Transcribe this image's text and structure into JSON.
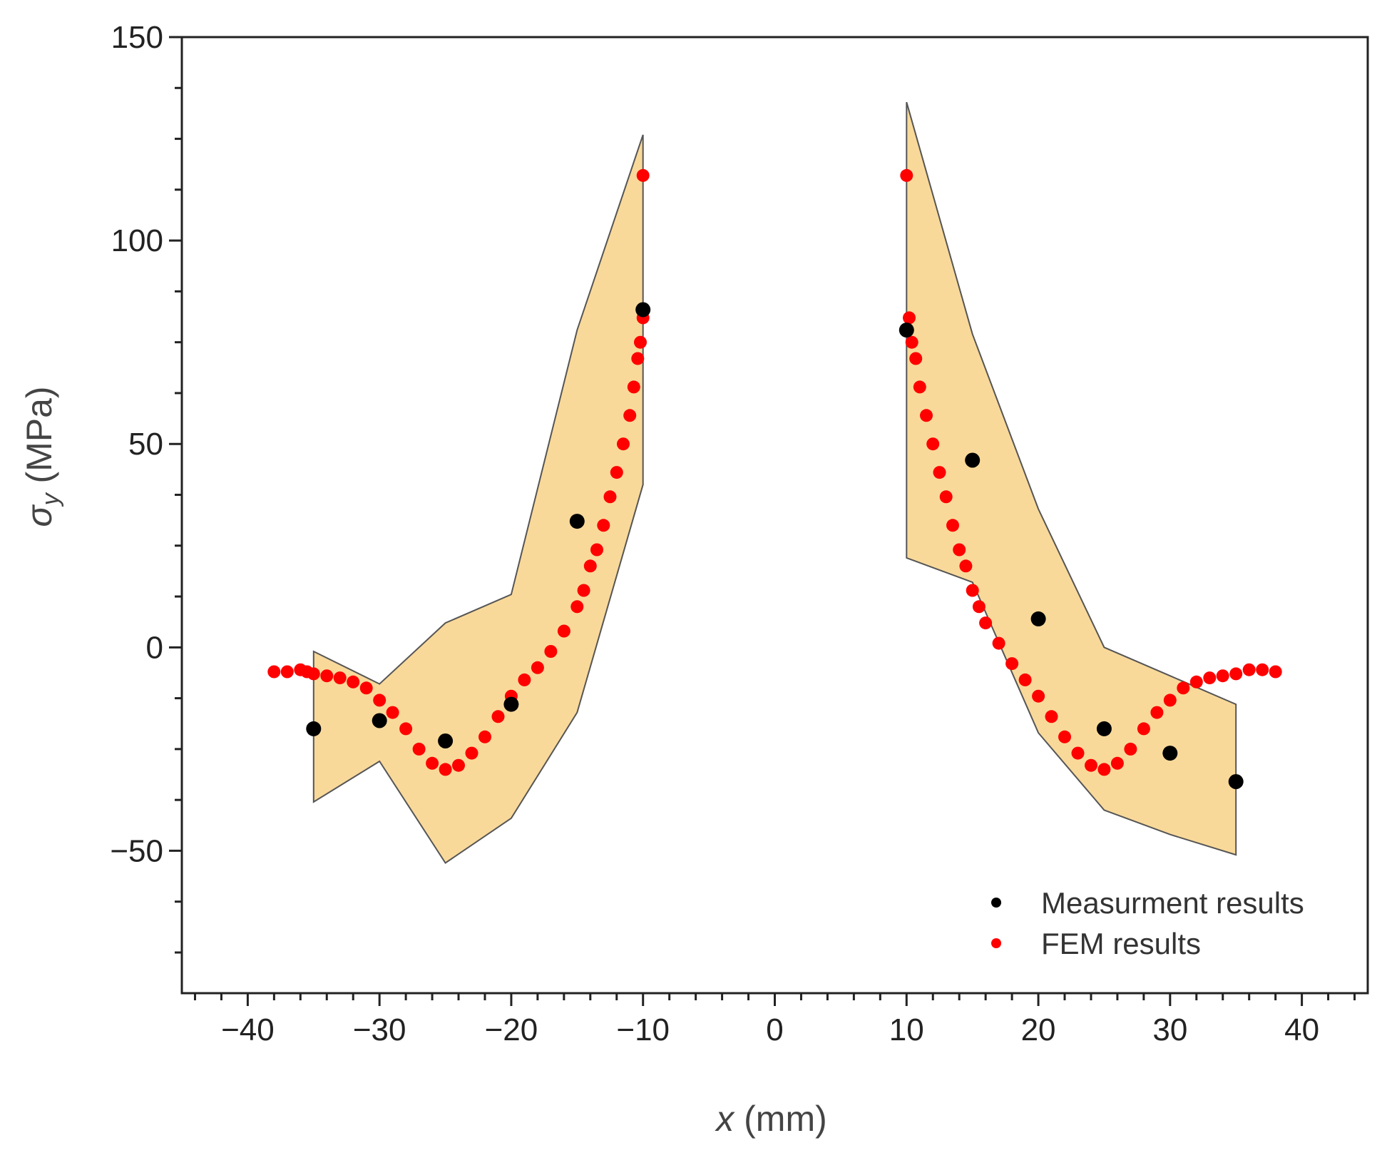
{
  "chart_data": {
    "type": "scatter",
    "title": "",
    "xlabel": "x (mm)",
    "ylabel": "σy (MPa)",
    "xlabel_parts": {
      "var": "x",
      "unit": " (mm)"
    },
    "ylabel_parts": {
      "sym": "σ",
      "sub": "y",
      "unit": " (MPa)"
    },
    "xlim": [
      -45,
      45
    ],
    "ylim": [
      -85,
      150
    ],
    "x_ticks": [
      -40,
      -30,
      -20,
      -10,
      0,
      10,
      20,
      30,
      40
    ],
    "x_tick_labels": [
      "−40",
      "−30",
      "−20",
      "−10",
      "0",
      "10",
      "20",
      "30",
      "40"
    ],
    "y_ticks": [
      150,
      100,
      50,
      0,
      -50
    ],
    "y_tick_labels": [
      "150",
      "100",
      "50",
      "0",
      "−50"
    ],
    "legend": {
      "position": "lower-right",
      "entries": [
        {
          "label": "Measurment results",
          "color": "#000000"
        },
        {
          "label": "FEM results",
          "color": "#ff0000"
        }
      ]
    },
    "band_color": "#f9d99a",
    "band_edge_color": "#555555",
    "band_left": {
      "upper": [
        [
          -35,
          -1
        ],
        [
          -30,
          -9
        ],
        [
          -25,
          6
        ],
        [
          -20,
          13
        ],
        [
          -15,
          78
        ],
        [
          -10,
          126
        ]
      ],
      "lower": [
        [
          -35,
          -38
        ],
        [
          -30,
          -28
        ],
        [
          -25,
          -53
        ],
        [
          -20,
          -42
        ],
        [
          -15,
          -16
        ],
        [
          -10,
          40
        ]
      ]
    },
    "band_right": {
      "upper": [
        [
          10,
          134
        ],
        [
          15,
          77
        ],
        [
          20,
          34
        ],
        [
          25,
          0
        ],
        [
          30,
          -7
        ],
        [
          35,
          -14
        ]
      ],
      "lower": [
        [
          10,
          22
        ],
        [
          15,
          16
        ],
        [
          20,
          -21
        ],
        [
          25,
          -40
        ],
        [
          30,
          -46
        ],
        [
          35,
          -51
        ]
      ]
    },
    "series": [
      {
        "name": "Measurment results",
        "color": "#000000",
        "points": [
          [
            -35,
            -20
          ],
          [
            -30,
            -18
          ],
          [
            -25,
            -23
          ],
          [
            -20,
            -14
          ],
          [
            -15,
            31
          ],
          [
            -10,
            83
          ],
          [
            10,
            78
          ],
          [
            15,
            46
          ],
          [
            20,
            7
          ],
          [
            25,
            -20
          ],
          [
            30,
            -26
          ],
          [
            35,
            -33
          ]
        ]
      },
      {
        "name": "FEM results",
        "color": "#ff0000",
        "points": [
          [
            -38,
            -6
          ],
          [
            -37,
            -6
          ],
          [
            -36,
            -5.5
          ],
          [
            -35.5,
            -6
          ],
          [
            -35,
            -6.5
          ],
          [
            -34,
            -7
          ],
          [
            -33,
            -7.5
          ],
          [
            -32,
            -8.5
          ],
          [
            -31,
            -10
          ],
          [
            -30,
            -13
          ],
          [
            -29,
            -16
          ],
          [
            -28,
            -20
          ],
          [
            -27,
            -25
          ],
          [
            -26,
            -28.5
          ],
          [
            -25,
            -30
          ],
          [
            -24,
            -29
          ],
          [
            -23,
            -26
          ],
          [
            -22,
            -22
          ],
          [
            -21,
            -17
          ],
          [
            -20,
            -12
          ],
          [
            -19,
            -8
          ],
          [
            -18,
            -5
          ],
          [
            -17,
            -1
          ],
          [
            -16,
            4
          ],
          [
            -15,
            10
          ],
          [
            -14.5,
            14
          ],
          [
            -14,
            20
          ],
          [
            -13.5,
            24
          ],
          [
            -13,
            30
          ],
          [
            -12.5,
            37
          ],
          [
            -12,
            43
          ],
          [
            -11.5,
            50
          ],
          [
            -11,
            57
          ],
          [
            -10.7,
            64
          ],
          [
            -10.4,
            71
          ],
          [
            -10.2,
            75
          ],
          [
            -10,
            81
          ],
          [
            -10,
            116
          ],
          [
            10,
            116
          ],
          [
            10.2,
            81
          ],
          [
            10.4,
            75
          ],
          [
            10.7,
            71
          ],
          [
            11,
            64
          ],
          [
            11.5,
            57
          ],
          [
            12,
            50
          ],
          [
            12.5,
            43
          ],
          [
            13,
            37
          ],
          [
            13.5,
            30
          ],
          [
            14,
            24
          ],
          [
            14.5,
            20
          ],
          [
            15,
            14
          ],
          [
            15.5,
            10
          ],
          [
            16,
            6
          ],
          [
            17,
            1
          ],
          [
            18,
            -4
          ],
          [
            19,
            -8
          ],
          [
            20,
            -12
          ],
          [
            21,
            -17
          ],
          [
            22,
            -22
          ],
          [
            23,
            -26
          ],
          [
            24,
            -29
          ],
          [
            25,
            -30
          ],
          [
            26,
            -28.5
          ],
          [
            27,
            -25
          ],
          [
            28,
            -20
          ],
          [
            29,
            -16
          ],
          [
            30,
            -13
          ],
          [
            31,
            -10
          ],
          [
            32,
            -8.5
          ],
          [
            33,
            -7.5
          ],
          [
            34,
            -7
          ],
          [
            35,
            -6.5
          ],
          [
            36,
            -5.5
          ],
          [
            37,
            -5.5
          ],
          [
            38,
            -6
          ]
        ]
      }
    ]
  }
}
